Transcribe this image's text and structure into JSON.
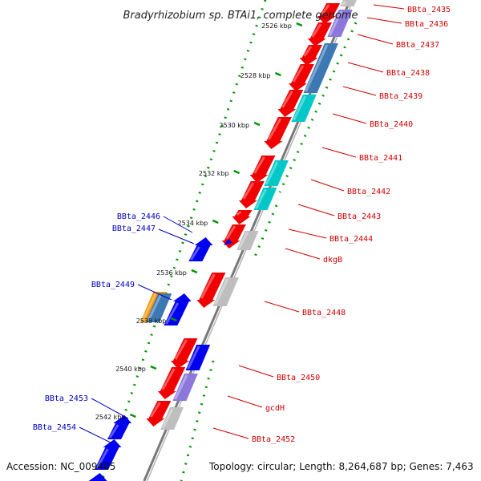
{
  "title": "Bradyrhizobium sp. BTAi1, complete genome",
  "footer": {
    "accession": "Accession: NC_009485",
    "topology": "Topology: circular; Length: 8,264,687 bp; Genes: 7,463"
  },
  "colors": {
    "forward_cds": "#f00000",
    "reverse_cds": "#0000f0",
    "cog_cyan": "#00c8c8",
    "cog_steel": "#3c78b4",
    "cog_lavender": "#8c78dc",
    "cog_grey": "#bebebe",
    "cog_orange": "#f09600",
    "gc_ticks": "#009600",
    "backbone": "#787878",
    "right_label": "#d00000",
    "left_label": "#0000c0"
  },
  "ticks": [
    "2526 kbp",
    "2528 kbp",
    "2530 kbp",
    "2532 kbp",
    "2534 kbp",
    "2536 kbp",
    "2538 kbp",
    "2540 kbp",
    "2542 kbp"
  ],
  "right_labels": [
    "BBta_2435",
    "BBta_2436",
    "BBta_2437",
    "BBta_2438",
    "BBta_2439",
    "BBta_2440",
    "BBta_2441",
    "BBta_2442",
    "BBta_2443",
    "BBta_2444",
    "dkgB",
    "BBta_2448",
    "BBta_2450",
    "gcdH",
    "BBta_2452"
  ],
  "left_labels": [
    "BBta_2446",
    "BBta_2447",
    "BBta_2449",
    "BBta_2453",
    "BBta_2454"
  ]
}
